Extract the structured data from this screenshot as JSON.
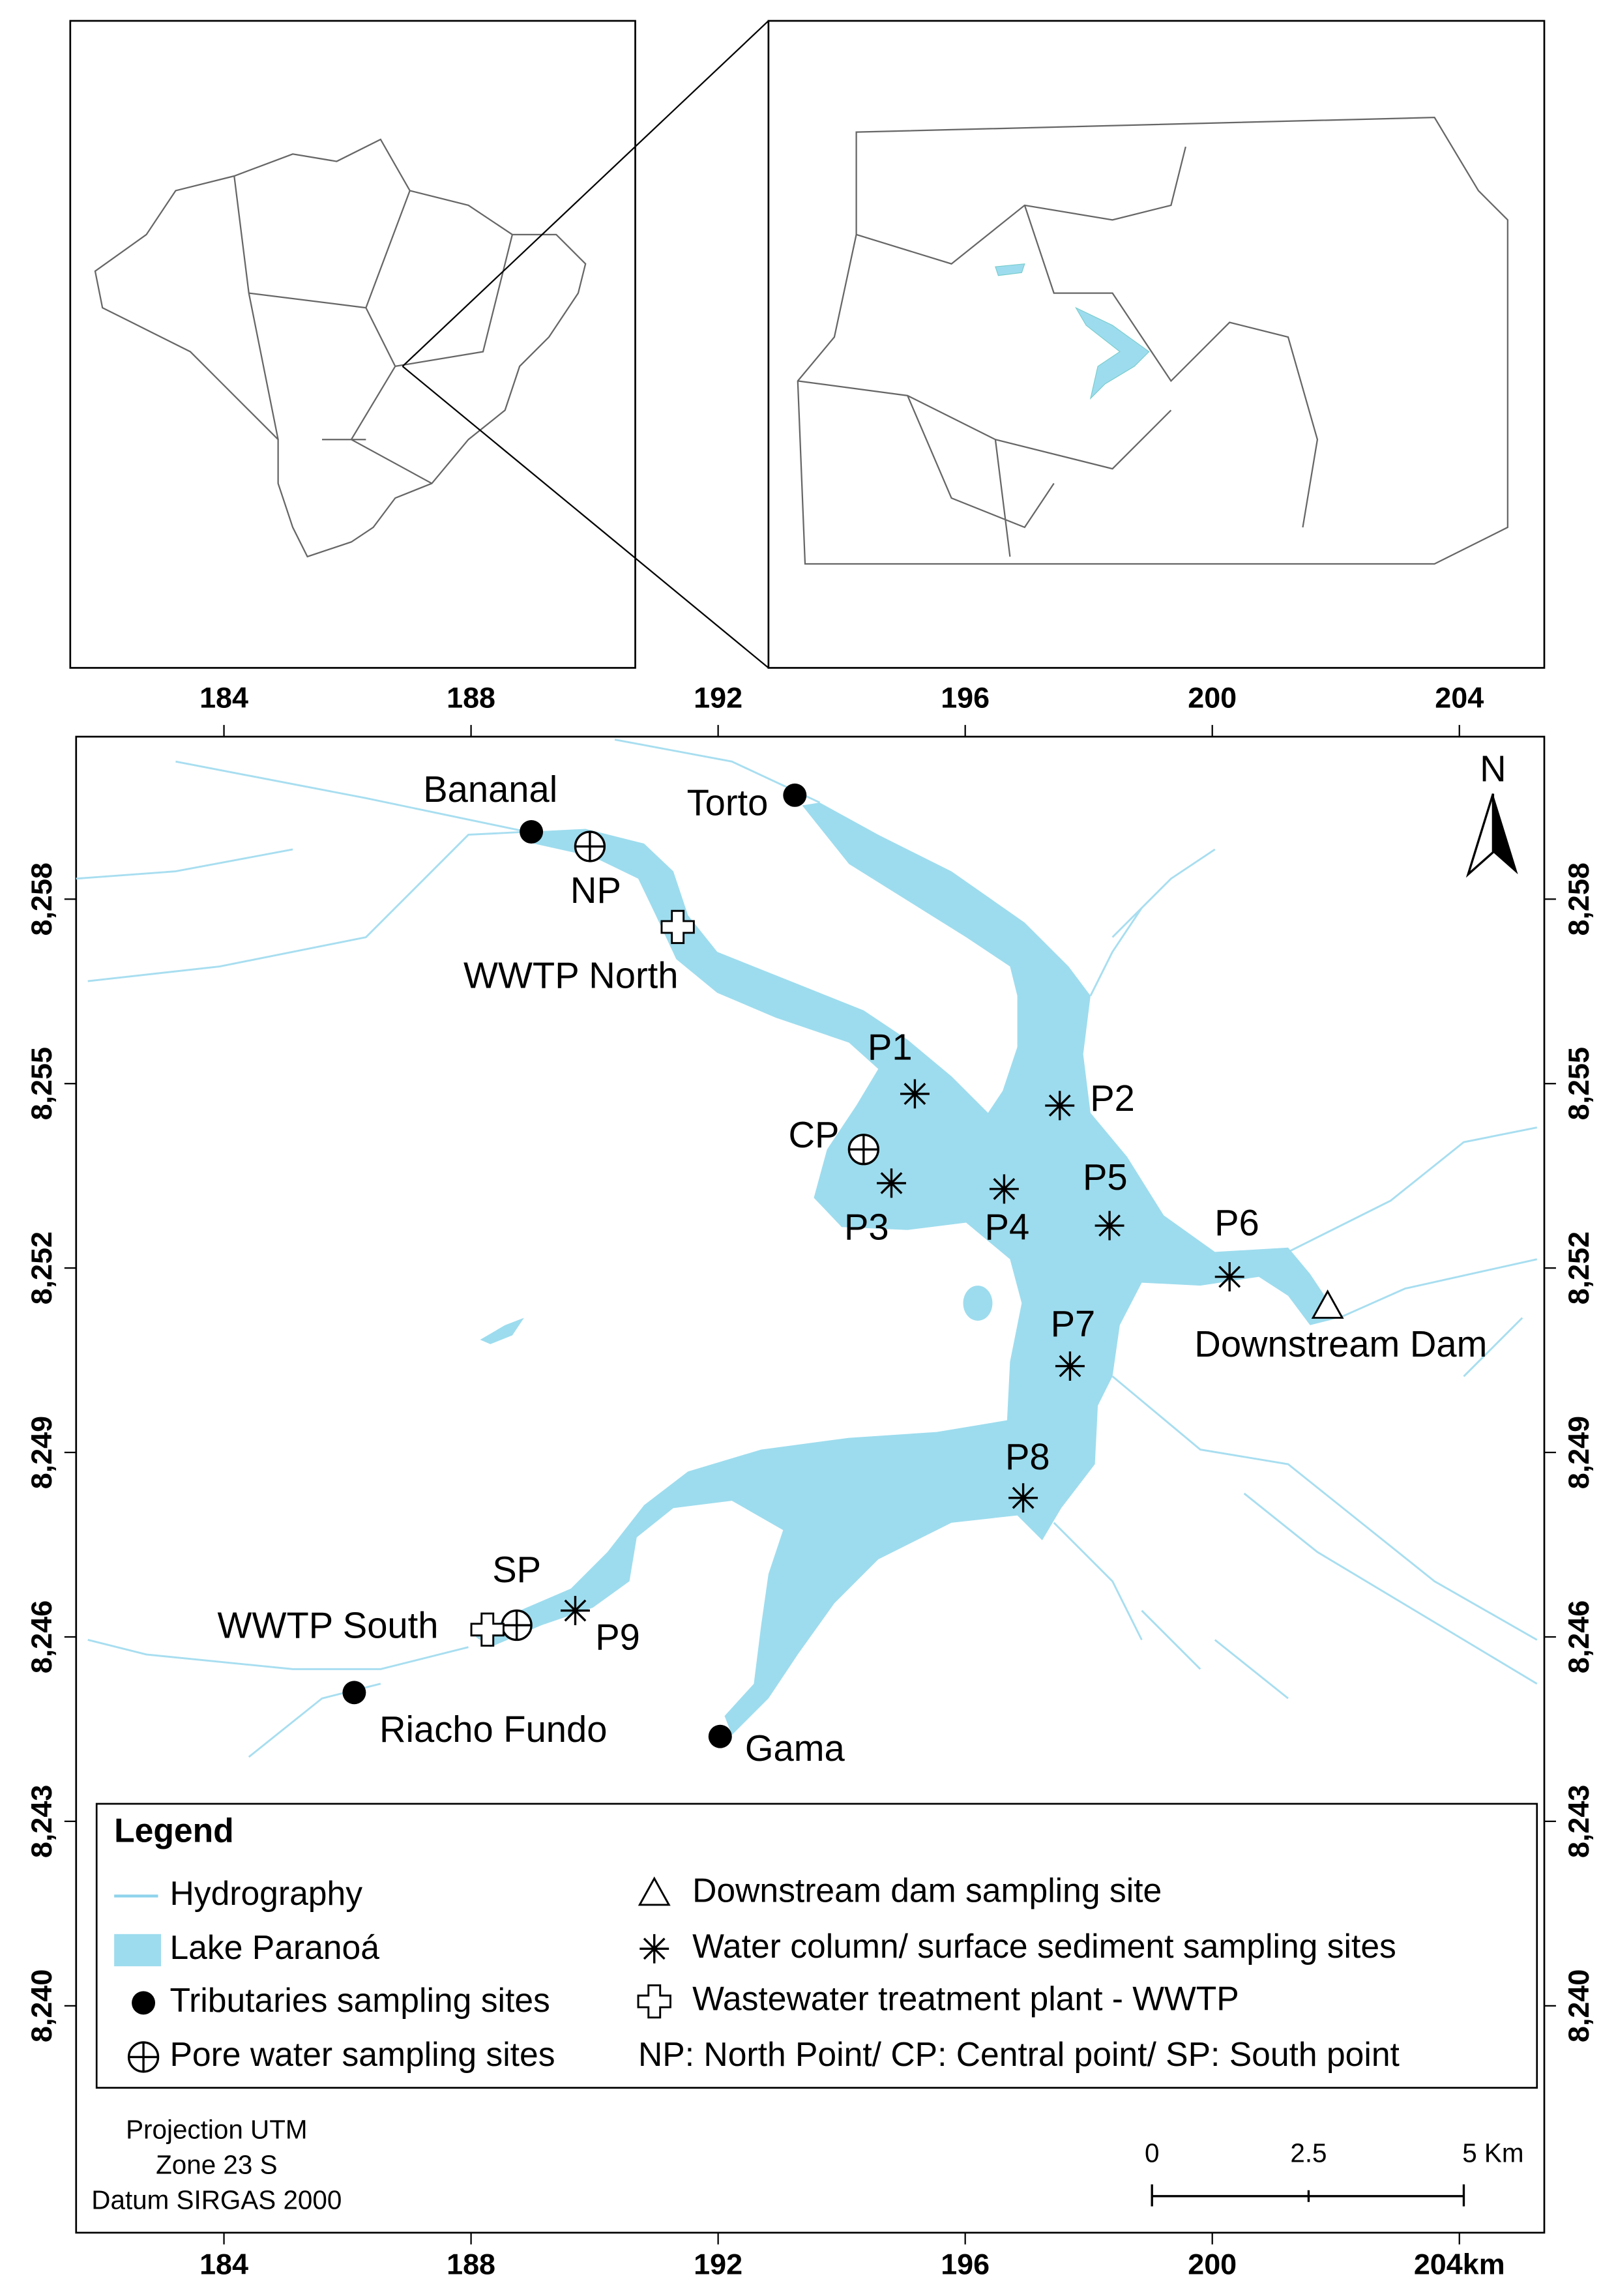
{
  "map": {
    "x_ticks_top": [
      184,
      188,
      192,
      196,
      200,
      204
    ],
    "x_ticks_bottom": [
      184,
      188,
      192,
      196,
      200,
      {
        "value": 204,
        "label": "204km"
      }
    ],
    "y_ticks": [
      {
        "value": 8258,
        "label": "8,258"
      },
      {
        "value": 8255,
        "label": "8,255"
      },
      {
        "value": 8252,
        "label": "8,252"
      },
      {
        "value": 8249,
        "label": "8,249"
      },
      {
        "value": 8246,
        "label": "8,246"
      },
      {
        "value": 8243,
        "label": "8,243"
      },
      {
        "value": 8240,
        "label": "8,240"
      }
    ],
    "north": "N",
    "sites": [
      "Bananal",
      "Torto",
      "NP",
      "WWTP North",
      "P1",
      "P2",
      "CP",
      "P3",
      "P4",
      "P5",
      "P6",
      "Downstream Dam",
      "P7",
      "P8",
      "SP",
      "P9",
      "WWTP South",
      "Riacho Fundo",
      "Gama"
    ],
    "projection": [
      "Projection UTM",
      "Zone 23 S",
      "Datum SIRGAS 2000"
    ],
    "scale_labels": [
      "0",
      "2.5",
      "5 Km"
    ]
  },
  "legend": {
    "title": "Legend",
    "items": [
      "Hydrography",
      "Lake Paranoá",
      "Tributaries sampling sites",
      "Pore water sampling sites",
      "Downstream dam sampling site",
      "Water column/ surface sediment sampling sites",
      "Wastewater treatment plant - WWTP",
      "NP: North Point/ CP: Central point/ SP: South point"
    ]
  }
}
